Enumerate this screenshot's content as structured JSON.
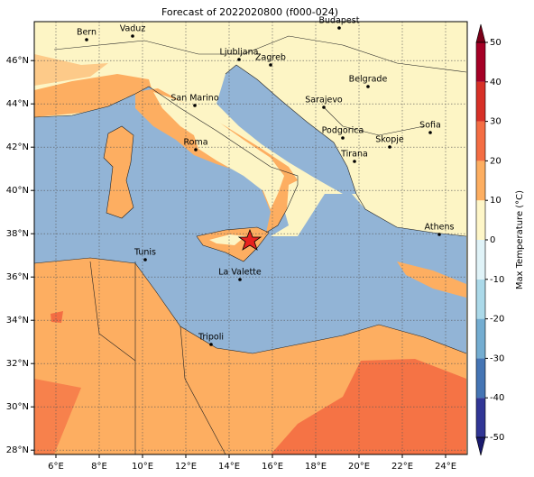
{
  "title": "Forecast of 2022020800 (f000-024)",
  "map": {
    "xlim": [
      5,
      25
    ],
    "ylim": [
      27.8,
      47.8
    ],
    "xticks": [
      {
        "value": 6,
        "label": "6°E"
      },
      {
        "value": 8,
        "label": "8°E"
      },
      {
        "value": 10,
        "label": "10°E"
      },
      {
        "value": 12,
        "label": "12°E"
      },
      {
        "value": 14,
        "label": "14°E"
      },
      {
        "value": 16,
        "label": "16°E"
      },
      {
        "value": 18,
        "label": "18°E"
      },
      {
        "value": 20,
        "label": "20°E"
      },
      {
        "value": 22,
        "label": "22°E"
      },
      {
        "value": 24,
        "label": "24°E"
      }
    ],
    "yticks": [
      {
        "value": 28,
        "label": "28°N"
      },
      {
        "value": 30,
        "label": "30°N"
      },
      {
        "value": 32,
        "label": "32°N"
      },
      {
        "value": 34,
        "label": "34°N"
      },
      {
        "value": 36,
        "label": "36°N"
      },
      {
        "value": 38,
        "label": "38°N"
      },
      {
        "value": 40,
        "label": "40°N"
      },
      {
        "value": 42,
        "label": "42°N"
      },
      {
        "value": 44,
        "label": "44°N"
      },
      {
        "value": 46,
        "label": "46°N"
      }
    ],
    "grid": true,
    "cities": [
      "Bern",
      "Vaduz",
      "Budapest",
      "Ljubljana",
      "Zagreb",
      "Belgrade",
      "San Marino",
      "Sarajevo",
      "Sofia",
      "Podgorica",
      "Skopje",
      "Roma",
      "Tirana",
      "Athens",
      "Tunis",
      "La Valette",
      "Tripoli"
    ]
  },
  "colorbar": {
    "label": "Max Temperature (°C)",
    "lim": [
      -50,
      50
    ],
    "ticks": [
      -50,
      -40,
      -30,
      -20,
      -10,
      0,
      10,
      20,
      30,
      40,
      50
    ],
    "colors": [
      "#313695",
      "#4575b4",
      "#74add1",
      "#abd9e9",
      "#e0f3f8",
      "#fef6c8",
      "#fdae61",
      "#f46d43",
      "#d73027",
      "#a50026"
    ],
    "under_color": "#1a1a6e",
    "over_color": "#7a0019"
  }
}
